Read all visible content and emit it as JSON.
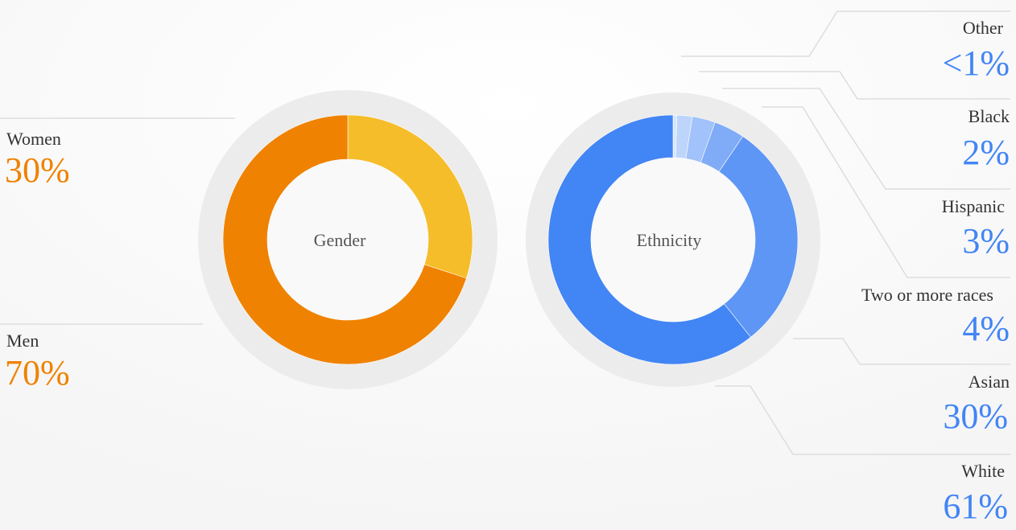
{
  "colors": {
    "gender_accent": "#ef8200",
    "ethnicity_accent": "#4285f4",
    "ring_background": "#ececec"
  },
  "chart_data": [
    {
      "type": "pie",
      "center_label": "Gender",
      "series": [
        {
          "name": "Women",
          "value": 30,
          "label": "30%",
          "color": "#f6bd2a"
        },
        {
          "name": "Men",
          "value": 70,
          "label": "70%",
          "color": "#ef8200"
        }
      ]
    },
    {
      "type": "pie",
      "center_label": "Ethnicity",
      "series": [
        {
          "name": "Other",
          "value": 0.5,
          "label": "<1%",
          "color": "#d6e6fd"
        },
        {
          "name": "Black",
          "value": 2,
          "label": "2%",
          "color": "#bdd5fb"
        },
        {
          "name": "Hispanic",
          "value": 3,
          "label": "3%",
          "color": "#a1c2fa"
        },
        {
          "name": "Two or more races",
          "value": 4,
          "label": "4%",
          "color": "#80abf7"
        },
        {
          "name": "Asian",
          "value": 30,
          "label": "30%",
          "color": "#5e96f5"
        },
        {
          "name": "White",
          "value": 61,
          "label": "61%",
          "color": "#4285f4"
        }
      ]
    }
  ]
}
